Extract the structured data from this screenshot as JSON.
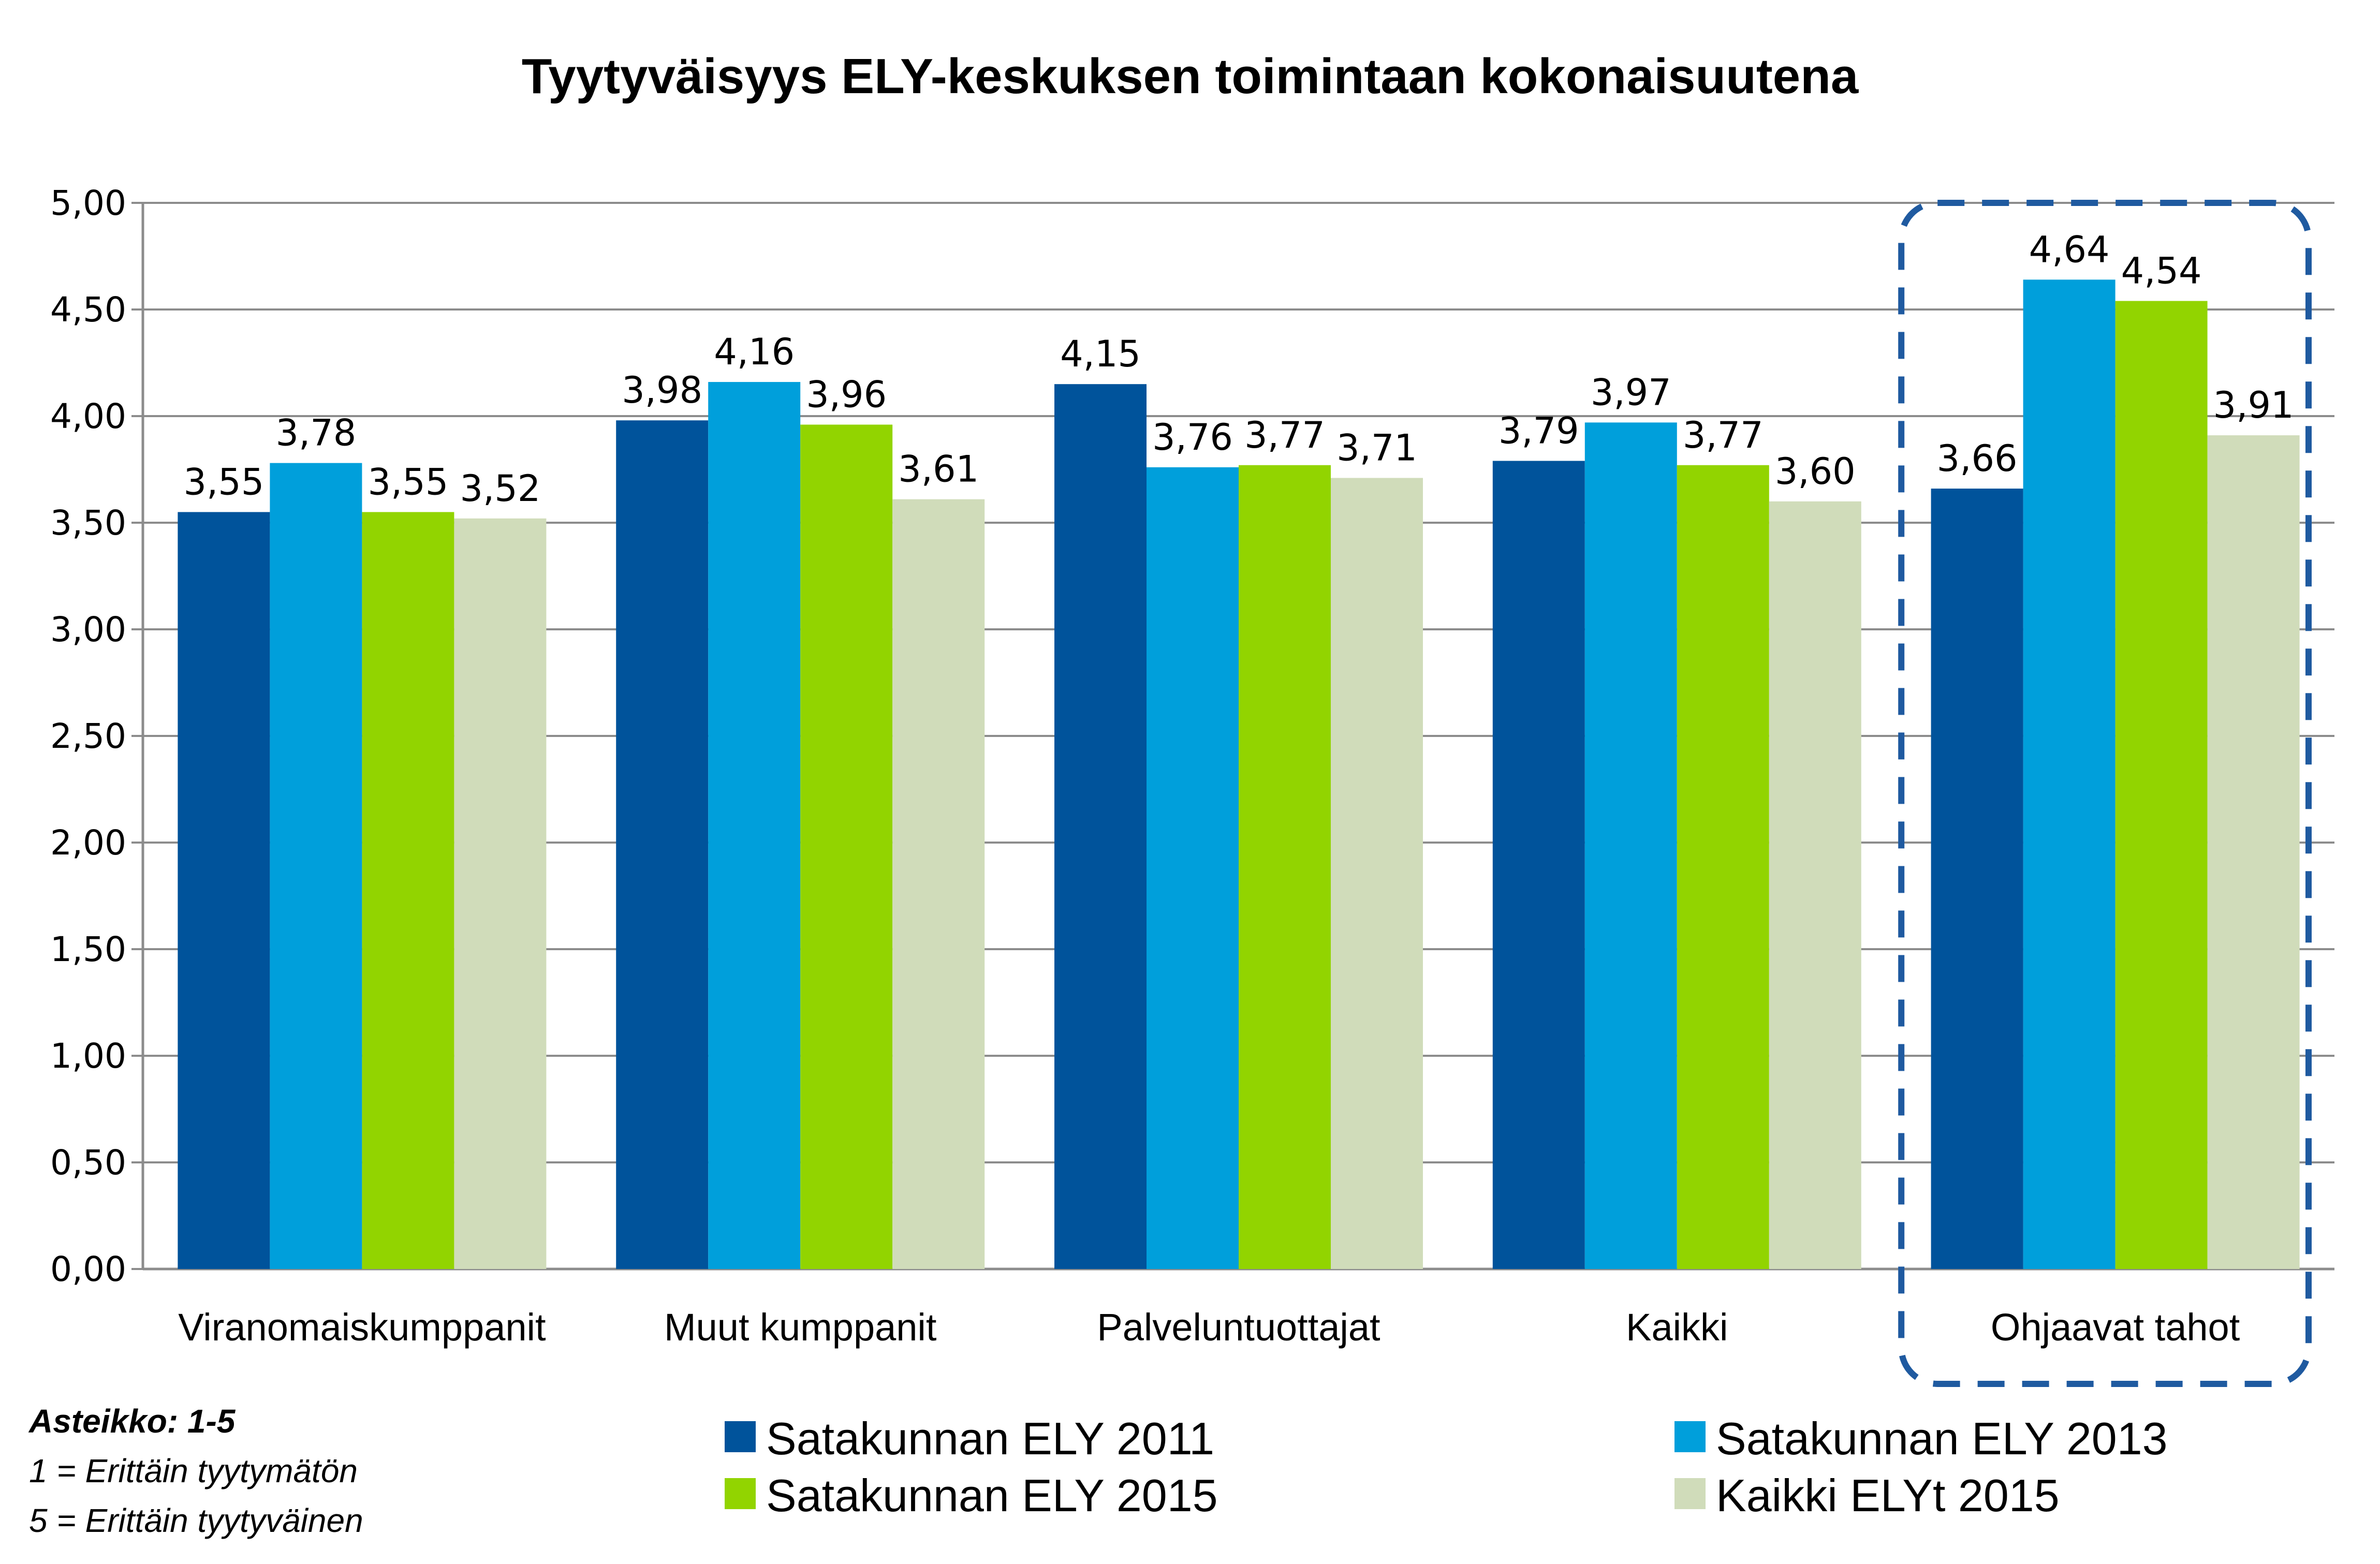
{
  "chart_data": {
    "type": "bar",
    "title": "Tyytyväisyys ELY-keskuksen toimintaan kokonaisuutena",
    "xlabel": "",
    "ylabel": "",
    "ylim": [
      0,
      5
    ],
    "y_ticks": [
      "0,00",
      "0,50",
      "1,00",
      "1,50",
      "2,00",
      "2,50",
      "3,00",
      "3,50",
      "4,00",
      "4,50",
      "5,00"
    ],
    "grid": true,
    "categories": [
      "Viranomaiskumppanit",
      "Muut kumppanit",
      "Palveluntuottajat",
      "Kaikki",
      "Ohjaavat tahot"
    ],
    "highlighted_category": "Ohjaavat tahot",
    "series": [
      {
        "name": "Satakunnan ELY 2011",
        "color": "#00539b",
        "values": [
          3.55,
          3.98,
          4.15,
          3.79,
          3.66
        ],
        "labels": [
          "3,55",
          "3,98",
          "4,15",
          "3,79",
          "3,66"
        ]
      },
      {
        "name": "Satakunnan ELY 2013",
        "color": "#009fdb",
        "values": [
          3.78,
          4.16,
          3.76,
          3.97,
          4.64
        ],
        "labels": [
          "3,78",
          "4,16",
          "3,76",
          "3,97",
          "4,64"
        ]
      },
      {
        "name": "Satakunnan ELY 2015",
        "color": "#92d400",
        "values": [
          3.55,
          3.96,
          3.77,
          3.77,
          4.54
        ],
        "labels": [
          "3,55",
          "3,96",
          "3,77",
          "3,77",
          "4,54"
        ]
      },
      {
        "name": "Kaikki ELYt 2015",
        "color": "#d0dcba",
        "values": [
          3.52,
          3.61,
          3.71,
          3.6,
          3.91
        ],
        "labels": [
          "3,52",
          "3,61",
          "3,71",
          "3,60",
          "3,91"
        ]
      }
    ],
    "legend_placement": "bottom",
    "notes": {
      "scale": "Asteikko: 1-5",
      "low": "1 = Erittäin tyytymätön",
      "high": "5 = Erittäin tyytyväinen"
    }
  }
}
